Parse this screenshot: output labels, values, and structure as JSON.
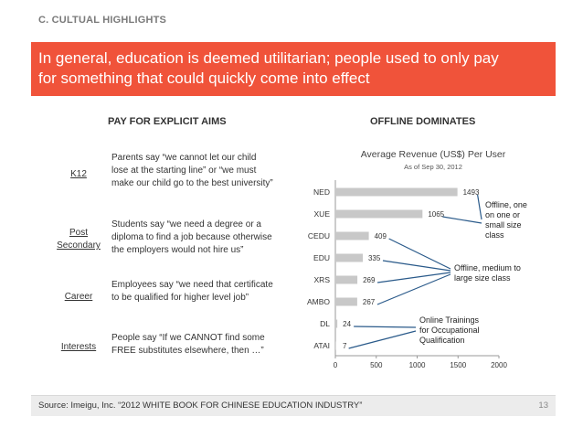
{
  "section_label": "C. CULTUAL HIGHLIGHTS",
  "banner": {
    "line1": "In general, education is deemed utilitarian; people used to only pay",
    "line2": "for something that could quickly come into effect"
  },
  "left_heading": "PAY FOR EXPLICIT AIMS",
  "right_heading": "OFFLINE DOMINATES",
  "rows": [
    {
      "name": "K12",
      "l1": "Parents say “we cannot let our child",
      "l2": "lose at the starting line” or “we must",
      "l3": "make our child go to the best university”"
    },
    {
      "name1": "Post",
      "name2": "Secondary",
      "l1": "Students say “we need a degree or a",
      "l2": "diploma to find a job because otherwise",
      "l3": "the employers would not hire us”"
    },
    {
      "name": "Career",
      "l1": "Employees say “we need that certificate",
      "l2": "to be qualified for higher level job”"
    },
    {
      "name": "Interests",
      "l1": "People say “If we CANNOT find some",
      "l2": "FREE substitutes elsewhere, then …”"
    }
  ],
  "annotations": {
    "offline_one": [
      "Offline, one",
      "on one or",
      "small size",
      "class"
    ],
    "offline_medium": [
      "Offline, medium to",
      "large size class"
    ],
    "online": [
      "Online Trainings",
      "for Occupational",
      "Qualification"
    ]
  },
  "chart_data": {
    "type": "bar",
    "orientation": "horizontal",
    "title": "Average Revenue (US$) Per User",
    "subtitle": "As of Sep 30, 2012",
    "categories": [
      "NED",
      "XUE",
      "CEDU",
      "EDU",
      "XRS",
      "AMBO",
      "DL",
      "ATAI"
    ],
    "values": [
      1493,
      1065,
      409,
      335,
      269,
      267,
      24,
      7
    ],
    "xlim": [
      0,
      2000
    ],
    "xticks": [
      0,
      500,
      1000,
      1500,
      2000
    ],
    "bar_color": "#c8c8c8",
    "grid": false,
    "legend": "none"
  },
  "footer": {
    "source": "Source: Imeigu, Inc. “2012 WHITE BOOK FOR CHINESE EDUCATION INDUSTRY”",
    "page": "13"
  }
}
